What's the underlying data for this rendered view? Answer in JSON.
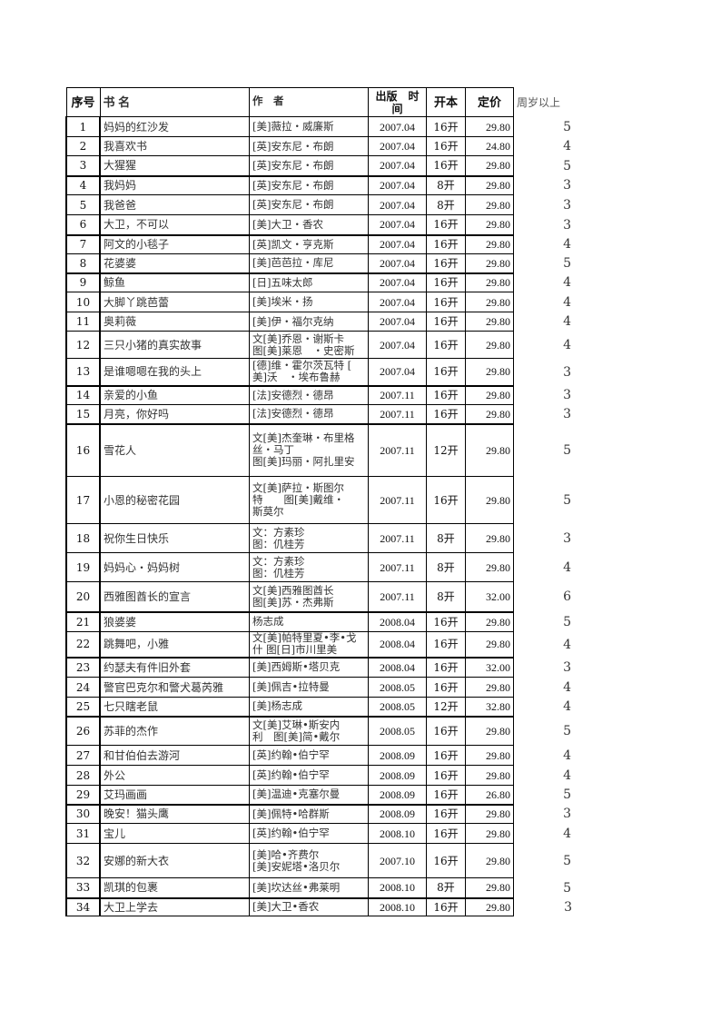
{
  "headers": [
    "序号",
    "书 名",
    "作　者",
    "出版　时间",
    "开本",
    "定价",
    "周岁以上"
  ],
  "rows": [
    {
      "no": "1",
      "title": "妈妈的红沙发",
      "author": [
        "[美]薇拉・威廉斯"
      ],
      "date": "2007.04",
      "size": "16开",
      "price": "29.80",
      "age": "5"
    },
    {
      "no": "2",
      "title": "我喜欢书",
      "author": [
        "[英]安东尼・布朗"
      ],
      "date": "2007.04",
      "size": "16开",
      "price": "24.80",
      "age": "4"
    },
    {
      "no": "3",
      "title": "大猩猩",
      "author": [
        "[英]安东尼・布朗"
      ],
      "date": "2007.04",
      "size": "16开",
      "price": "29.80",
      "age": "5"
    },
    {
      "no": "4",
      "title": "我妈妈",
      "author": [
        "[英]安东尼・布朗"
      ],
      "date": "2007.04",
      "size": "8开",
      "price": "29.80",
      "age": "3"
    },
    {
      "no": "5",
      "title": "我爸爸",
      "author": [
        "[英]安东尼・布朗"
      ],
      "date": "2007.04",
      "size": "8开",
      "price": "29.80",
      "age": "3"
    },
    {
      "no": "6",
      "title": "大卫，不可以",
      "author": [
        "[美]大卫・香农"
      ],
      "date": "2007.04",
      "size": "16开",
      "price": "29.80",
      "age": "3"
    },
    {
      "no": "7",
      "title": "阿文的小毯子",
      "author": [
        "[英]凯文・亨克斯"
      ],
      "date": "2007.04",
      "size": "16开",
      "price": "29.80",
      "age": "4"
    },
    {
      "no": "8",
      "title": "花婆婆",
      "author": [
        "[美]芭芭拉・库尼"
      ],
      "date": "2007.04",
      "size": "16开",
      "price": "29.80",
      "age": "5"
    },
    {
      "no": "9",
      "title": "鲸鱼",
      "author": [
        "[日]五味太郎"
      ],
      "date": "2007.04",
      "size": "16开",
      "price": "29.80",
      "age": "4"
    },
    {
      "no": "10",
      "title": "大脚丫跳芭蕾",
      "author": [
        "[美]埃米・扬"
      ],
      "date": "2007.04",
      "size": "16开",
      "price": "29.80",
      "age": "4"
    },
    {
      "no": "11",
      "title": "奥莉薇",
      "author": [
        "[美]伊・福尔克纳"
      ],
      "date": "2007.04",
      "size": "16开",
      "price": "29.80",
      "age": "4"
    },
    {
      "no": "12",
      "title": "三只小猪的真实故事",
      "author": [
        "文[美]乔恩・谢斯卡",
        "图[美]莱恩　・史密斯"
      ],
      "date": "2007.04",
      "size": "16开",
      "price": "29.80",
      "age": "4"
    },
    {
      "no": "13",
      "title": "是谁嗯嗯在我的头上",
      "author": [
        "[德]维・霍尔茨瓦特 [",
        "美]沃　・埃布鲁赫"
      ],
      "date": "2007.04",
      "size": "16开",
      "price": "29.80",
      "age": "3"
    },
    {
      "no": "14",
      "title": "亲爱的小鱼",
      "author": [
        "[法]安德烈・德昂"
      ],
      "date": "2007.11",
      "size": "16开",
      "price": "29.80",
      "age": "3"
    },
    {
      "no": "15",
      "title": "月亮，你好吗",
      "author": [
        "[法]安德烈・德昂"
      ],
      "date": "2007.11",
      "size": "16开",
      "price": "29.80",
      "age": "3"
    },
    {
      "no": "16",
      "title": "雪花人",
      "author": [
        "文[美]杰奎琳・布里格",
        "丝・马丁",
        "图[美]玛丽・阿扎里安"
      ],
      "date": "2007.11",
      "size": "12开",
      "price": "29.80",
      "age": "5"
    },
    {
      "no": "17",
      "title": "小恩的秘密花园",
      "author": [
        "文[美]萨拉・斯图尔",
        "特　　图[美]戴维・",
        "斯莫尔"
      ],
      "date": "2007.11",
      "size": "16开",
      "price": "29.80",
      "age": "5"
    },
    {
      "no": "18",
      "title": "祝你生日快乐",
      "author": [
        "文：方素珍",
        "图：仉桂芳"
      ],
      "date": "2007.11",
      "size": "8开",
      "price": "29.80",
      "age": "3"
    },
    {
      "no": "19",
      "title": "妈妈心・妈妈树",
      "author": [
        "文：方素珍",
        "图：仉桂芳"
      ],
      "date": "2007.11",
      "size": "8开",
      "price": "29.80",
      "age": "4"
    },
    {
      "no": "20",
      "title": "西雅图酋长的宣言",
      "author": [
        "文[美]西雅图酋长",
        "图[美]苏・杰弗斯"
      ],
      "date": "2007.11",
      "size": "8开",
      "price": "32.00",
      "age": "6"
    },
    {
      "no": "21",
      "title": "狼婆婆",
      "author": [
        "杨志成"
      ],
      "date": "2008.04",
      "size": "16开",
      "price": "29.80",
      "age": "5"
    },
    {
      "no": "22",
      "title": "跳舞吧，小雅",
      "author": [
        "文[美]帕特里夏•李•戈",
        "什 图[日]市川里美"
      ],
      "date": "2008.04",
      "size": "16开",
      "price": "29.80",
      "age": "4"
    },
    {
      "no": "23",
      "title": "约瑟夫有件旧外套",
      "author": [
        "[美]西姆斯•塔贝克"
      ],
      "date": "2008.04",
      "size": "16开",
      "price": "32.00",
      "age": "3"
    },
    {
      "no": "24",
      "title": "警官巴克尔和警犬葛芮雅",
      "author": [
        "[美]佩吉•拉特曼"
      ],
      "date": "2008.05",
      "size": "16开",
      "price": "29.80",
      "age": "4"
    },
    {
      "no": "25",
      "title": "七只瞎老鼠",
      "author": [
        "[美]杨志成"
      ],
      "date": "2008.05",
      "size": "12开",
      "price": "32.80",
      "age": "4"
    },
    {
      "no": "26",
      "title": "苏菲的杰作",
      "author": [
        "文[美]艾琳•斯安内",
        "利　图[美]简•戴尔"
      ],
      "date": "2008.05",
      "size": "16开",
      "price": "29.80",
      "age": "5"
    },
    {
      "no": "27",
      "title": "和甘伯伯去游河",
      "author": [
        "[英]约翰•伯宁罕"
      ],
      "date": "2008.09",
      "size": "16开",
      "price": "29.80",
      "age": "4"
    },
    {
      "no": "28",
      "title": "外公",
      "author": [
        "[英]约翰•伯宁罕"
      ],
      "date": "2008.09",
      "size": "16开",
      "price": "29.80",
      "age": "4"
    },
    {
      "no": "29",
      "title": "艾玛画画",
      "author": [
        "[美]温迪•克塞尔曼"
      ],
      "date": "2008.09",
      "size": "16开",
      "price": "26.80",
      "age": "5"
    },
    {
      "no": "30",
      "title": "晚安！猫头鹰",
      "author": [
        "[美]佩特•哈群斯"
      ],
      "date": "2008.09",
      "size": "16开",
      "price": "29.80",
      "age": "3"
    },
    {
      "no": "31",
      "title": "宝儿",
      "author": [
        "[英]约翰•伯宁罕"
      ],
      "date": "2008.10",
      "size": "16开",
      "price": "29.80",
      "age": "4"
    },
    {
      "no": "32",
      "title": "安娜的新大衣",
      "author": [
        "[美]哈•齐费尔",
        "[美]安妮塔•洛贝尔"
      ],
      "date": "2007.10",
      "size": "16开",
      "price": "29.80",
      "age": "5"
    },
    {
      "no": "33",
      "title": "凯琪的包裹",
      "author": [
        "[美]坎达丝•弗莱明"
      ],
      "date": "2008.10",
      "size": "8开",
      "price": "29.80",
      "age": "5"
    },
    {
      "no": "34",
      "title": "大卫上学去",
      "author": [
        "[美]大卫•香农"
      ],
      "date": "2008.10",
      "size": "16开",
      "price": "29.80",
      "age": "3"
    }
  ]
}
